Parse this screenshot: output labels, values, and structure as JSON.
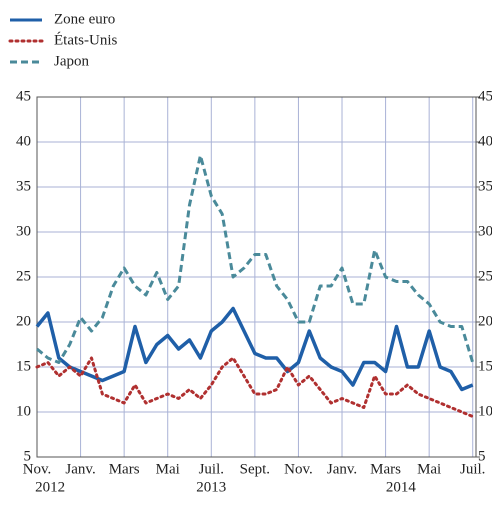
{
  "chart_data": {
    "type": "line",
    "x": [
      0,
      0.5,
      1,
      1.5,
      2,
      2.5,
      3,
      3.5,
      4,
      4.5,
      5,
      5.5,
      6,
      6.5,
      7,
      7.5,
      8,
      8.5,
      9,
      9.5,
      10,
      10.5,
      11,
      11.5,
      12,
      12.5,
      13,
      13.5,
      14,
      14.5,
      15,
      15.5,
      16,
      16.5,
      17,
      17.5,
      18,
      18.5,
      19,
      19.5,
      20
    ],
    "series": [
      {
        "name": "Zone euro",
        "color": "#1f5fa8",
        "style": "solid",
        "values": [
          19.5,
          21,
          16,
          15,
          14.5,
          14,
          13.5,
          14,
          14.5,
          19.5,
          15.5,
          17.5,
          18.5,
          17,
          18,
          16,
          19,
          20,
          21.5,
          19,
          16.5,
          16,
          16,
          14.5,
          15.5,
          19,
          16,
          15,
          14.5,
          13,
          15.5,
          15.5,
          14.5,
          19.5,
          15,
          15,
          19,
          15,
          14.5,
          12.5,
          13
        ]
      },
      {
        "name": "États-Unis",
        "color": "#b03030",
        "style": "dotted",
        "values": [
          15,
          15.5,
          14,
          15,
          14,
          16,
          12,
          11.5,
          11,
          13,
          11,
          11.5,
          12,
          11.5,
          12.5,
          11.5,
          13,
          15,
          16,
          14,
          12,
          12,
          12.5,
          15,
          13,
          14,
          12.5,
          11,
          11.5,
          11,
          10.5,
          14,
          12,
          12,
          13,
          12,
          11.5,
          11,
          10.5,
          10,
          9.5
        ]
      },
      {
        "name": "Japon",
        "color": "#4a8a9a",
        "style": "dashed",
        "values": [
          17,
          16,
          15.5,
          17.5,
          20.5,
          19,
          20.5,
          24,
          26,
          24,
          23,
          25.5,
          22.5,
          24,
          33,
          38.5,
          34,
          32,
          25,
          26,
          27.5,
          27.5,
          24,
          22.5,
          20,
          20,
          24,
          24,
          26,
          22,
          22,
          28,
          25,
          24.5,
          24.5,
          23,
          22,
          20,
          19.5,
          19.5,
          15.5
        ]
      }
    ],
    "xlim": [
      0,
      20.15
    ],
    "xticks": [
      {
        "value": 0,
        "label": "Nov."
      },
      {
        "value": 2,
        "label": "Janv."
      },
      {
        "value": 4,
        "label": "Mars"
      },
      {
        "value": 6,
        "label": "Mai"
      },
      {
        "value": 8,
        "label": "Juil."
      },
      {
        "value": 10,
        "label": "Sept."
      },
      {
        "value": 12,
        "label": "Nov."
      },
      {
        "value": 14,
        "label": "Janv."
      },
      {
        "value": 16,
        "label": "Mars"
      },
      {
        "value": 18,
        "label": "Mai"
      },
      {
        "value": 20,
        "label": "Juil."
      }
    ],
    "year_labels": [
      {
        "value": 0.6,
        "label": "2012"
      },
      {
        "value": 8,
        "label": "2013"
      },
      {
        "value": 16.7,
        "label": "2014"
      }
    ],
    "ylim": [
      5,
      45
    ],
    "yticks": [
      5,
      10,
      15,
      20,
      25,
      30,
      35,
      40,
      45
    ],
    "y2lim": [
      5,
      45
    ],
    "y2ticks": [
      5,
      10,
      15,
      20,
      25,
      30,
      35,
      40,
      45
    ],
    "grid": true
  }
}
